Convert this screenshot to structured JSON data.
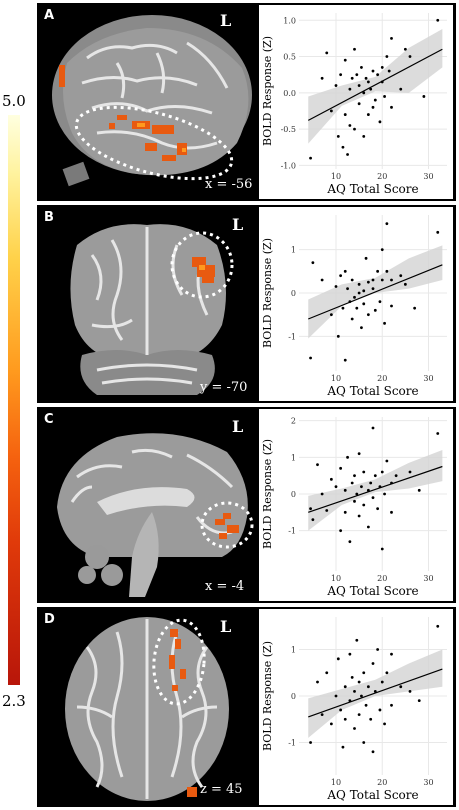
{
  "colorbar": {
    "max_label": "5.0",
    "min_label": "2.3",
    "colors": [
      "#ffffe0",
      "#ffd24a",
      "#ff9a1e",
      "#e03a0a",
      "#b8160a"
    ]
  },
  "panels": [
    {
      "letter": "A",
      "hemisphere": "L",
      "coord": "x = -56"
    },
    {
      "letter": "B",
      "hemisphere": "L",
      "coord": "y = -70"
    },
    {
      "letter": "C",
      "hemisphere": "L",
      "coord": "x = -4"
    },
    {
      "letter": "D",
      "hemisphere": "L",
      "coord": "z = 45"
    }
  ],
  "chart_data": [
    {
      "type": "scatter",
      "xlabel": "AQ Total Score",
      "ylabel": "BOLD Response (Z)",
      "xticks": [
        10,
        20,
        30
      ],
      "yticks": [
        -1.0,
        -0.5,
        0.0,
        0.5,
        1.0
      ],
      "ytick_labels": [
        "-1.0",
        "-0.5",
        "0.0",
        "0.5",
        "1.0"
      ],
      "xlim": [
        2,
        34
      ],
      "ylim": [
        -1.05,
        1.1
      ],
      "points": [
        [
          4.5,
          -0.9
        ],
        [
          7,
          0.2
        ],
        [
          8,
          0.55
        ],
        [
          9,
          -0.25
        ],
        [
          10,
          0.1
        ],
        [
          10.5,
          -0.6
        ],
        [
          11,
          0.25
        ],
        [
          11.5,
          -0.75
        ],
        [
          12,
          -0.3
        ],
        [
          12,
          0.45
        ],
        [
          12.5,
          -0.85
        ],
        [
          13,
          0.05
        ],
        [
          13,
          -0.45
        ],
        [
          13.5,
          0.2
        ],
        [
          14,
          -0.5
        ],
        [
          14,
          0.6
        ],
        [
          14.5,
          0.25
        ],
        [
          15,
          -0.15
        ],
        [
          15,
          0.1
        ],
        [
          15.5,
          0.35
        ],
        [
          16,
          -0.6
        ],
        [
          16,
          0.0
        ],
        [
          16.5,
          0.2
        ],
        [
          17,
          0.15
        ],
        [
          17,
          -0.3
        ],
        [
          17.5,
          0.05
        ],
        [
          18,
          -0.2
        ],
        [
          18,
          0.3
        ],
        [
          18.5,
          -0.1
        ],
        [
          19,
          0.25
        ],
        [
          19.5,
          -0.4
        ],
        [
          20,
          0.35
        ],
        [
          20,
          0.15
        ],
        [
          20.5,
          -0.05
        ],
        [
          21,
          0.5
        ],
        [
          21.5,
          0.3
        ],
        [
          22,
          0.75
        ],
        [
          22,
          -0.2
        ],
        [
          24,
          0.05
        ],
        [
          25,
          0.6
        ],
        [
          26,
          0.5
        ],
        [
          29,
          -0.05
        ],
        [
          32,
          1.0
        ]
      ],
      "fit": [
        [
          4,
          -0.38
        ],
        [
          33,
          0.6
        ]
      ],
      "ci_low": [
        -0.7,
        -0.18,
        0.02,
        0.0,
        0.35
      ],
      "ci_high": [
        -0.05,
        0.1,
        0.22,
        0.62,
        0.88
      ]
    },
    {
      "type": "scatter",
      "xlabel": "AQ Total Score",
      "ylabel": "BOLD Response (Z)",
      "xticks": [
        10,
        20,
        30
      ],
      "yticks": [
        -1,
        0,
        1
      ],
      "ytick_labels": [
        "-1",
        "0",
        "1"
      ],
      "xlim": [
        2,
        34
      ],
      "ylim": [
        -1.8,
        1.8
      ],
      "points": [
        [
          4.5,
          -1.5
        ],
        [
          5,
          0.7
        ],
        [
          7,
          0.3
        ],
        [
          9,
          -0.5
        ],
        [
          10,
          0.15
        ],
        [
          10.5,
          -1.0
        ],
        [
          11,
          0.4
        ],
        [
          11.5,
          -0.35
        ],
        [
          12,
          -1.55
        ],
        [
          12,
          0.5
        ],
        [
          12.5,
          0.1
        ],
        [
          13,
          -0.2
        ],
        [
          13.5,
          -0.6
        ],
        [
          13.5,
          0.3
        ],
        [
          14,
          -0.1
        ],
        [
          14.5,
          -0.35
        ],
        [
          15,
          0.0
        ],
        [
          15,
          0.2
        ],
        [
          15.5,
          -0.8
        ],
        [
          16,
          0.05
        ],
        [
          16,
          -0.25
        ],
        [
          16.5,
          0.8
        ],
        [
          17,
          0.25
        ],
        [
          17,
          -0.5
        ],
        [
          18,
          0.1
        ],
        [
          18,
          0.3
        ],
        [
          18.5,
          -0.4
        ],
        [
          19,
          0.5
        ],
        [
          19.5,
          -0.2
        ],
        [
          20,
          1.0
        ],
        [
          20,
          0.3
        ],
        [
          20.5,
          -0.7
        ],
        [
          21,
          0.5
        ],
        [
          21,
          1.6
        ],
        [
          22,
          0.3
        ],
        [
          22,
          -0.3
        ],
        [
          24,
          0.4
        ],
        [
          25,
          0.2
        ],
        [
          27,
          -0.35
        ],
        [
          32,
          1.4
        ]
      ],
      "fit": [
        [
          4,
          -0.6
        ],
        [
          33,
          0.65
        ]
      ],
      "ci_low": [
        -1.05,
        -0.3,
        0.0,
        0.1,
        0.3
      ],
      "ci_high": [
        -0.15,
        0.2,
        0.35,
        0.8,
        1.1
      ]
    },
    {
      "type": "scatter",
      "xlabel": "AQ Total Score",
      "ylabel": "BOLD Response (Z)",
      "xticks": [
        10,
        20,
        30
      ],
      "yticks": [
        -1,
        0,
        1,
        2
      ],
      "ytick_labels": [
        "-1",
        "0",
        "1",
        "2"
      ],
      "xlim": [
        2,
        34
      ],
      "ylim": [
        -2.1,
        2.1
      ],
      "points": [
        [
          4.5,
          -0.4
        ],
        [
          5,
          -0.7
        ],
        [
          6,
          0.8
        ],
        [
          7,
          0.0
        ],
        [
          8,
          -0.45
        ],
        [
          9,
          0.4
        ],
        [
          10,
          0.2
        ],
        [
          11,
          -1.0
        ],
        [
          11,
          0.7
        ],
        [
          12,
          0.1
        ],
        [
          12,
          -0.5
        ],
        [
          12.5,
          1.0
        ],
        [
          13,
          -1.3
        ],
        [
          13.5,
          0.3
        ],
        [
          14,
          -0.2
        ],
        [
          14,
          0.5
        ],
        [
          14.5,
          0.0
        ],
        [
          15,
          1.1
        ],
        [
          15,
          -0.6
        ],
        [
          15.5,
          0.2
        ],
        [
          16,
          -0.3
        ],
        [
          16,
          0.6
        ],
        [
          17,
          0.1
        ],
        [
          17,
          -0.9
        ],
        [
          17.5,
          0.3
        ],
        [
          18,
          1.8
        ],
        [
          18,
          -0.1
        ],
        [
          18.5,
          0.5
        ],
        [
          19,
          -0.4
        ],
        [
          19.5,
          0.2
        ],
        [
          20,
          -1.5
        ],
        [
          20,
          0.6
        ],
        [
          20.5,
          0.0
        ],
        [
          21,
          0.9
        ],
        [
          22,
          0.3
        ],
        [
          22,
          -0.5
        ],
        [
          23,
          0.5
        ],
        [
          26,
          0.6
        ],
        [
          28,
          0.1
        ],
        [
          32,
          1.65
        ]
      ],
      "fit": [
        [
          4,
          -0.5
        ],
        [
          33,
          0.75
        ]
      ],
      "ci_low": [
        -1.0,
        -0.3,
        0.05,
        0.15,
        0.35
      ],
      "ci_high": [
        -0.05,
        0.15,
        0.4,
        0.85,
        1.2
      ]
    },
    {
      "type": "scatter",
      "xlabel": "AQ Total Score",
      "ylabel": "BOLD Response (Z)",
      "xticks": [
        10,
        20,
        30
      ],
      "yticks": [
        -1,
        0,
        1
      ],
      "ytick_labels": [
        "-1",
        "0",
        "1"
      ],
      "xlim": [
        2,
        34
      ],
      "ylim": [
        -1.7,
        1.7
      ],
      "points": [
        [
          4.5,
          -1.0
        ],
        [
          6,
          0.3
        ],
        [
          7,
          -0.4
        ],
        [
          8,
          0.5
        ],
        [
          9,
          -0.6
        ],
        [
          10,
          0.0
        ],
        [
          10.5,
          0.8
        ],
        [
          11,
          -0.3
        ],
        [
          11.5,
          -1.1
        ],
        [
          12,
          0.2
        ],
        [
          12,
          -0.5
        ],
        [
          13,
          0.9
        ],
        [
          13,
          -0.1
        ],
        [
          13.5,
          0.4
        ],
        [
          14,
          -0.7
        ],
        [
          14,
          0.1
        ],
        [
          14.5,
          1.2
        ],
        [
          15,
          -0.4
        ],
        [
          15,
          0.3
        ],
        [
          15.5,
          0.0
        ],
        [
          16,
          -1.0
        ],
        [
          16,
          0.5
        ],
        [
          16.5,
          -0.2
        ],
        [
          17,
          0.2
        ],
        [
          17.5,
          -0.5
        ],
        [
          18,
          0.7
        ],
        [
          18,
          -1.2
        ],
        [
          18.5,
          0.1
        ],
        [
          19,
          1.0
        ],
        [
          19.5,
          -0.3
        ],
        [
          20,
          0.3
        ],
        [
          20.5,
          -0.6
        ],
        [
          21,
          0.5
        ],
        [
          22,
          -0.2
        ],
        [
          22,
          0.9
        ],
        [
          24,
          0.2
        ],
        [
          26,
          0.1
        ],
        [
          28,
          -0.1
        ],
        [
          32,
          1.5
        ]
      ],
      "fit": [
        [
          4,
          -0.45
        ],
        [
          33,
          0.58
        ]
      ],
      "ci_low": [
        -0.9,
        -0.3,
        0.0,
        0.1,
        0.2
      ],
      "ci_high": [
        -0.05,
        0.15,
        0.35,
        0.7,
        1.0
      ]
    }
  ]
}
